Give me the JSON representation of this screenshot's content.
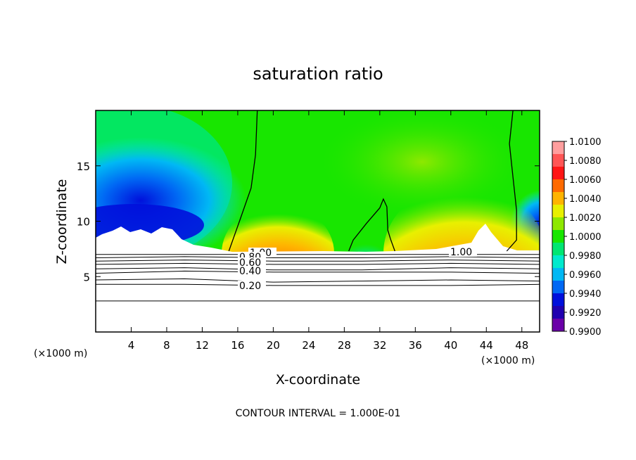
{
  "chart_data": {
    "type": "heatmap",
    "title": "saturation ratio",
    "xlabel": "X-coordinate",
    "ylabel": "Z-coordinate",
    "x_unit": "(×1000 m)",
    "x_unit_right": "(×1000 m)",
    "xlim": [
      0,
      50
    ],
    "ylim": [
      0,
      20
    ],
    "x_ticks": [
      4,
      8,
      12,
      16,
      20,
      24,
      28,
      32,
      36,
      40,
      44,
      48
    ],
    "x_tick_labels": [
      "4",
      "8",
      "12",
      "16",
      "20",
      "24",
      "28",
      "32",
      "36",
      "40",
      "44",
      "48"
    ],
    "y_ticks": [
      5,
      10,
      15
    ],
    "y_tick_labels": [
      "5",
      "10",
      "15"
    ],
    "colorbar": {
      "min": 0.99,
      "max": 1.01,
      "labels": [
        "1.0100",
        "1.0080",
        "1.0060",
        "1.0040",
        "1.0020",
        "1.0000",
        "0.9980",
        "0.9960",
        "0.9940",
        "0.9920",
        "0.9900"
      ],
      "colors": [
        "#ff9e9e",
        "#ff5555",
        "#ff1515",
        "#ff6a00",
        "#ffb400",
        "#e8f000",
        "#8ee800",
        "#18e600",
        "#00e672",
        "#00eacd",
        "#00b8f4",
        "#0068f4",
        "#0010dc",
        "#2000b0",
        "#6a00a8"
      ]
    },
    "contour_labels": [
      "1.00",
      "1.00",
      "0.80",
      "0.60",
      "0.40",
      "0.20"
    ],
    "contour_interval_text": "CONTOUR INTERVAL = 1.000E-01",
    "subsaturated_level_lines": [
      [
        [
          0,
          7.0
        ],
        [
          10,
          7.0
        ],
        [
          20,
          7.0
        ],
        [
          30,
          7.0
        ],
        [
          40,
          7.0
        ],
        [
          50,
          7.0
        ]
      ],
      [
        [
          0,
          6.7
        ],
        [
          10,
          6.8
        ],
        [
          20,
          6.7
        ],
        [
          30,
          6.7
        ],
        [
          40,
          6.8
        ],
        [
          50,
          6.7
        ]
      ],
      [
        [
          0,
          6.4
        ],
        [
          10,
          6.5
        ],
        [
          20,
          6.4
        ],
        [
          30,
          6.4
        ],
        [
          40,
          6.5
        ],
        [
          50,
          6.4
        ]
      ],
      [
        [
          0,
          6.1
        ],
        [
          10,
          6.2
        ],
        [
          20,
          6.1
        ],
        [
          30,
          6.1
        ],
        [
          40,
          6.2
        ],
        [
          50,
          6.1
        ]
      ],
      [
        [
          0,
          5.7
        ],
        [
          10,
          5.8
        ],
        [
          20,
          5.6
        ],
        [
          30,
          5.6
        ],
        [
          40,
          5.8
        ],
        [
          50,
          5.7
        ]
      ],
      [
        [
          0,
          5.3
        ],
        [
          10,
          5.5
        ],
        [
          20,
          5.4
        ],
        [
          30,
          5.4
        ],
        [
          40,
          5.4
        ],
        [
          50,
          5.3
        ]
      ],
      [
        [
          0,
          4.7
        ],
        [
          10,
          4.8
        ],
        [
          20,
          4.5
        ],
        [
          30,
          4.6
        ],
        [
          40,
          4.7
        ],
        [
          50,
          4.6
        ]
      ],
      [
        [
          0,
          4.3
        ],
        [
          10,
          4.3
        ],
        [
          20,
          4.2
        ],
        [
          30,
          4.2
        ],
        [
          40,
          4.2
        ],
        [
          50,
          4.3
        ]
      ],
      [
        [
          0,
          2.8
        ],
        [
          10,
          2.8
        ],
        [
          20,
          2.8
        ],
        [
          30,
          2.8
        ],
        [
          40,
          2.8
        ],
        [
          50,
          2.8
        ]
      ]
    ],
    "contour_1_00_lines": [
      [
        [
          15.0,
          7.3
        ],
        [
          16.2,
          10
        ],
        [
          17.5,
          13
        ],
        [
          18.0,
          16
        ],
        [
          18.2,
          20
        ]
      ],
      [
        [
          28.5,
          7.3
        ],
        [
          29.0,
          8.3
        ],
        [
          30.5,
          9.8
        ],
        [
          32.0,
          11.2
        ],
        [
          32.4,
          12
        ],
        [
          32.8,
          11.3
        ],
        [
          32.9,
          9.2
        ],
        [
          33.2,
          8.4
        ],
        [
          33.7,
          7.3
        ]
      ],
      [
        [
          46.3,
          7.3
        ],
        [
          47.4,
          8.3
        ],
        [
          47.4,
          11
        ],
        [
          47.0,
          14
        ],
        [
          46.6,
          17
        ],
        [
          47.0,
          20
        ]
      ]
    ]
  }
}
